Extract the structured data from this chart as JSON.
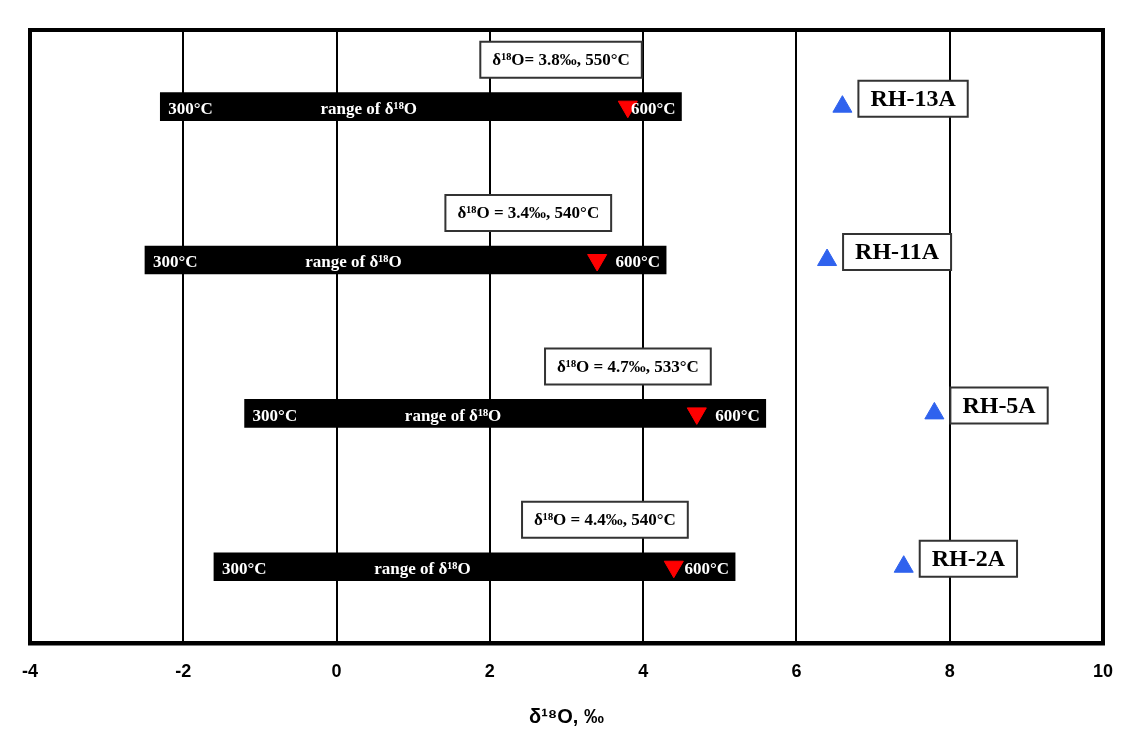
{
  "chart_data": {
    "type": "bar",
    "orientation": "horizontal",
    "categories": [
      "RH-13A",
      "RH-11A",
      "RH-5A",
      "RH-2A"
    ],
    "xlabel": "δ¹⁸O, ‰",
    "xlim": [
      -4,
      10
    ],
    "xticks": [
      -4,
      -2,
      0,
      2,
      4,
      6,
      8,
      10
    ],
    "grid": "x",
    "tick_labels": "x",
    "series": [
      {
        "color": "#000000",
        "base": [
          -2.3,
          -2.5,
          -1.2,
          -1.6
        ],
        "values": [
          6.8,
          6.8,
          6.8,
          6.8
        ]
      },
      {
        "type": "scatter",
        "color": "#ff0000",
        "marker": "triangle",
        "values": [
          3.8,
          3.4,
          4.7,
          4.4
        ],
        "value_labels": [
          "δ¹⁸O= 3.8‰, 550°C",
          "δ¹⁸O = 3.4‰, 540°C",
          "δ¹⁸O = 4.7‰, 533°C",
          "δ¹⁸O = 4.4‰, 540°C"
        ]
      },
      {
        "type": "scatter",
        "color": "#2f62ee",
        "marker": "triangle",
        "values": [
          6.6,
          6.4,
          7.8,
          7.4
        ]
      }
    ],
    "annotations": [
      "300°C",
      "range of δ¹⁸O",
      "600°C",
      "300°C",
      "range of δ¹⁸O",
      "600°C",
      "300°C",
      "range of δ¹⁸O",
      "600°C",
      "300°C",
      "range of δ¹⁸O",
      "600°C"
    ]
  }
}
